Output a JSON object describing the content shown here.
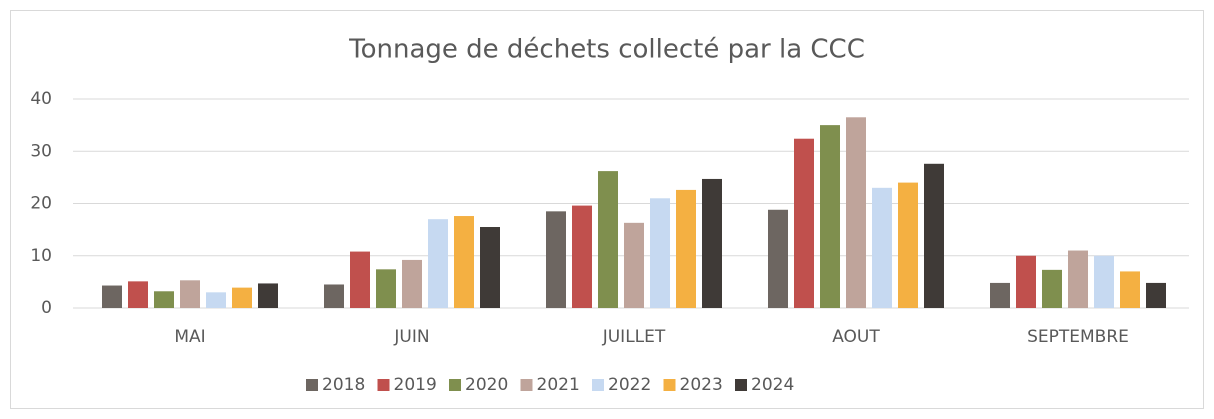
{
  "chart_data": {
    "type": "bar",
    "title": "Tonnage de déchets collecté par la CCC",
    "categories": [
      "MAI",
      "JUIN",
      "JUILLET",
      "AOUT",
      "SEPTEMBRE"
    ],
    "series": [
      {
        "name": "2018",
        "color": "#6d6661",
        "values": [
          4.3,
          4.5,
          18.5,
          18.8,
          4.8
        ]
      },
      {
        "name": "2019",
        "color": "#c0504d",
        "values": [
          5.1,
          10.8,
          19.6,
          32.4,
          10.0
        ]
      },
      {
        "name": "2020",
        "color": "#7f8f4e",
        "values": [
          3.2,
          7.4,
          26.2,
          35.0,
          7.3
        ]
      },
      {
        "name": "2021",
        "color": "#bfa49b",
        "values": [
          5.3,
          9.2,
          16.3,
          36.5,
          11.0
        ]
      },
      {
        "name": "2022",
        "color": "#c6d9f1",
        "values": [
          3.0,
          17.0,
          21.0,
          23.0,
          10.0
        ]
      },
      {
        "name": "2023",
        "color": "#f4b042",
        "values": [
          3.9,
          17.6,
          22.6,
          24.0,
          7.0
        ]
      },
      {
        "name": "2024",
        "color": "#3f3a37",
        "values": [
          4.7,
          15.5,
          24.7,
          27.6,
          4.8
        ]
      }
    ],
    "ylim": [
      0,
      40
    ],
    "yticks": [
      0,
      10,
      20,
      30,
      40
    ],
    "grid": true,
    "legend": "bottom"
  }
}
